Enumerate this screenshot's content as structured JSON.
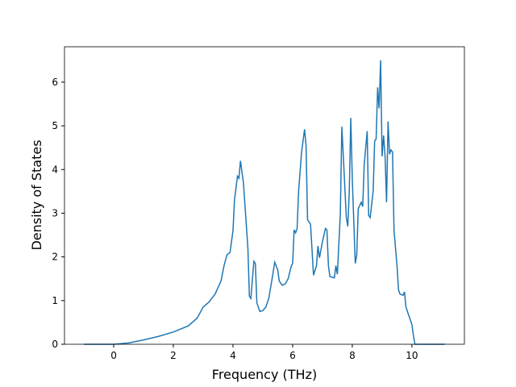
{
  "chart_data": {
    "type": "line",
    "x_label": "Frequency (THz)",
    "y_label": "Density of States",
    "xlim": [
      -1.65,
      11.76
    ],
    "ylim": [
      0,
      6.81
    ],
    "xticks": [
      0,
      2,
      4,
      6,
      8,
      10
    ],
    "yticks": [
      0,
      1,
      2,
      3,
      4,
      5,
      6
    ],
    "x": [
      -1,
      0,
      0.5,
      1,
      1.5,
      2,
      2.5,
      2.8,
      3.0,
      3.2,
      3.4,
      3.5,
      3.6,
      3.7,
      3.8,
      3.9,
      4.0,
      4.05,
      4.15,
      4.2,
      4.25,
      4.3,
      4.35,
      4.4,
      4.5,
      4.55,
      4.6,
      4.7,
      4.75,
      4.8,
      4.9,
      5.0,
      5.1,
      5.2,
      5.3,
      5.4,
      5.5,
      5.55,
      5.65,
      5.75,
      5.85,
      5.95,
      6.0,
      6.05,
      6.1,
      6.15,
      6.2,
      6.3,
      6.4,
      6.45,
      6.5,
      6.6,
      6.7,
      6.8,
      6.85,
      6.9,
      7.0,
      7.1,
      7.15,
      7.2,
      7.25,
      7.4,
      7.45,
      7.5,
      7.6,
      7.65,
      7.7,
      7.8,
      7.85,
      7.9,
      7.95,
      8.0,
      8.1,
      8.15,
      8.2,
      8.3,
      8.35,
      8.4,
      8.5,
      8.55,
      8.6,
      8.7,
      8.75,
      8.8,
      8.85,
      8.9,
      8.95,
      9.0,
      9.05,
      9.1,
      9.15,
      9.2,
      9.25,
      9.3,
      9.35,
      9.4,
      9.5,
      9.55,
      9.6,
      9.7,
      9.75,
      9.8,
      9.9,
      10.0,
      10.05,
      10.1,
      11.1
    ],
    "series": [
      {
        "color": "#1f77b4",
        "values": [
          0,
          0,
          0.03,
          0.1,
          0.18,
          0.28,
          0.42,
          0.6,
          0.85,
          0.97,
          1.15,
          1.3,
          1.45,
          1.8,
          2.05,
          2.1,
          2.6,
          3.3,
          3.85,
          3.8,
          4.2,
          3.95,
          3.7,
          3.2,
          2.2,
          1.1,
          1.05,
          1.9,
          1.85,
          0.95,
          0.75,
          0.77,
          0.85,
          1.05,
          1.45,
          1.88,
          1.7,
          1.45,
          1.35,
          1.38,
          1.5,
          1.78,
          1.85,
          2.62,
          2.55,
          2.65,
          3.5,
          4.4,
          4.92,
          4.55,
          2.85,
          2.75,
          1.58,
          1.8,
          2.25,
          1.98,
          2.35,
          2.65,
          2.62,
          1.8,
          1.55,
          1.52,
          1.8,
          1.6,
          3.0,
          4.98,
          4.3,
          2.9,
          2.7,
          3.5,
          5.18,
          3.8,
          1.85,
          2.05,
          3.1,
          3.25,
          3.15,
          4.1,
          4.88,
          2.95,
          2.9,
          3.5,
          4.65,
          4.7,
          5.88,
          5.4,
          6.5,
          4.3,
          4.78,
          4.3,
          3.25,
          5.1,
          4.35,
          4.45,
          4.4,
          2.6,
          1.8,
          1.25,
          1.15,
          1.12,
          1.2,
          0.85,
          0.65,
          0.45,
          0.2,
          0,
          0
        ]
      }
    ]
  }
}
